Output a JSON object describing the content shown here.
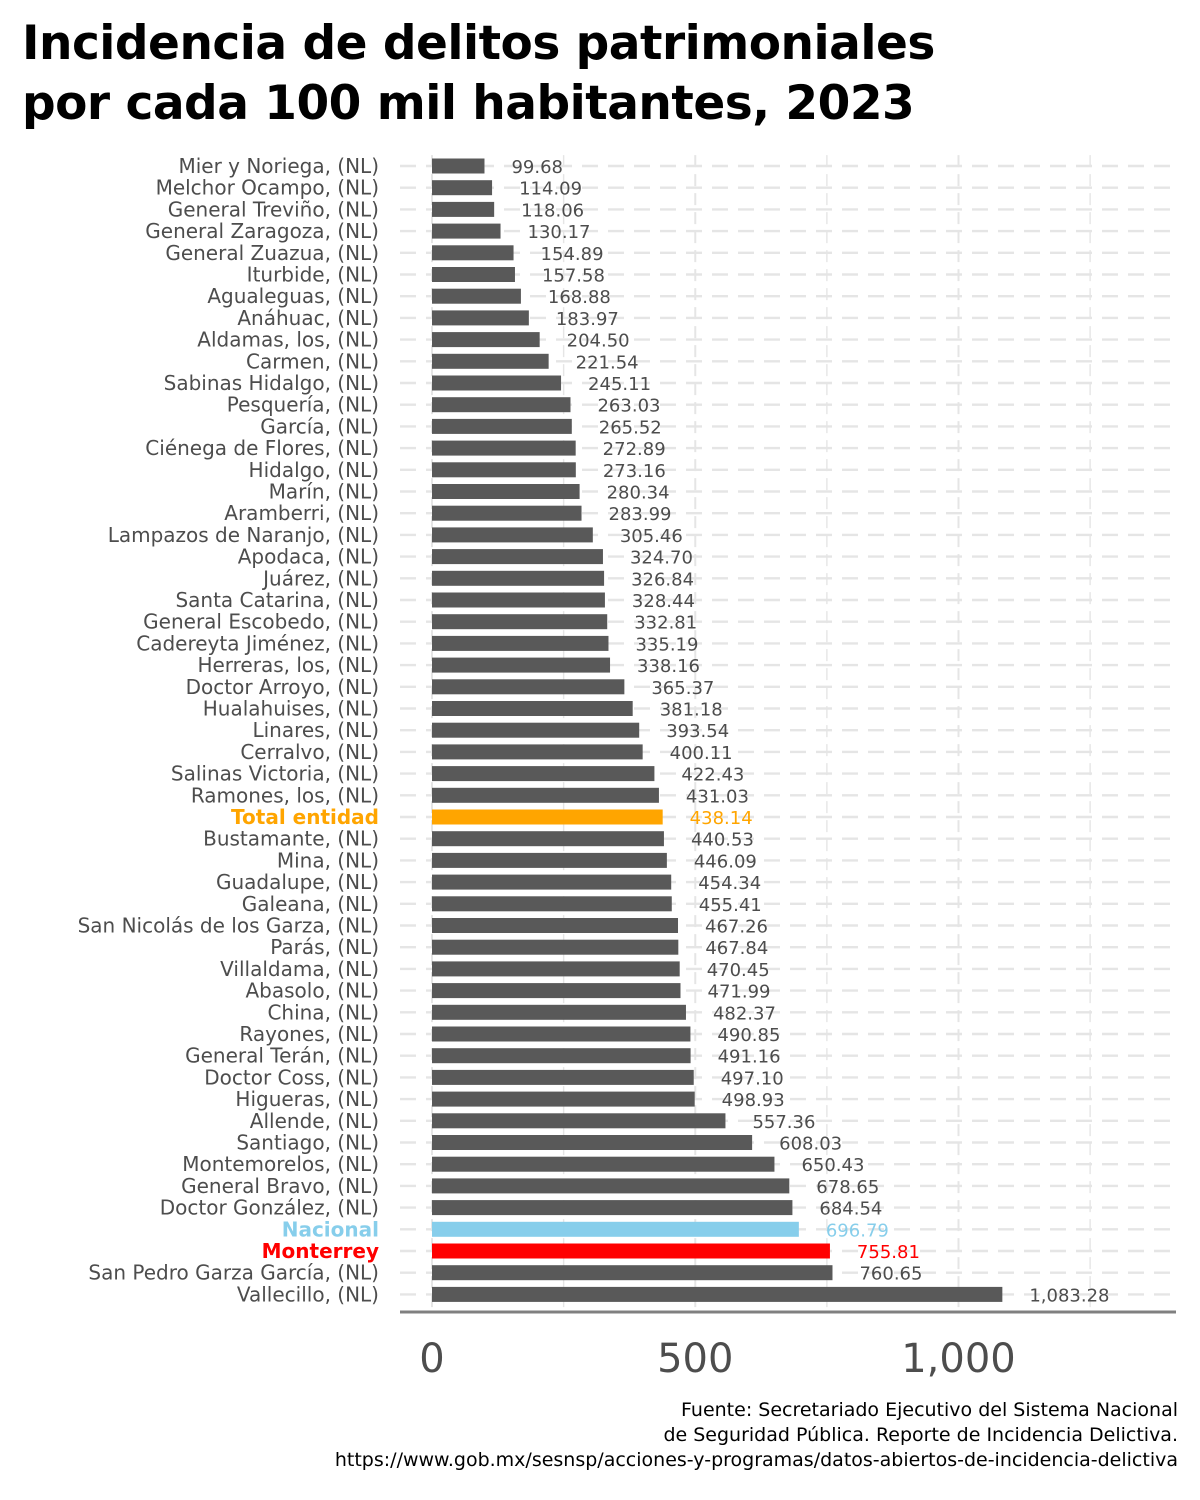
{
  "title": {
    "line1": "Incidencia de delitos patrimoniales",
    "line2": "por cada 100 mil habitantes, 2023"
  },
  "source": {
    "line1": "Fuente: Secretariado Ejecutivo del Sistema Nacional",
    "line2": "de Seguridad Pública. Reporte de Incidencia Delictiva.",
    "line3": "https://www.gob.mx/sesnsp/acciones-y-programas/datos-abiertos-de-incidencia-delictiva"
  },
  "chart_data": {
    "type": "bar",
    "orientation": "horizontal",
    "title": "Incidencia de delitos patrimoniales por cada 100 mil habitantes, 2023",
    "xlabel": "",
    "ylabel": "",
    "xlim": [
      0,
      1400
    ],
    "x_ticks": [
      0,
      500,
      1000
    ],
    "x_tick_labels": [
      "0",
      "500",
      "1,000"
    ],
    "grid": true,
    "colors": {
      "default": "#595959",
      "Total entidad": "#FFA500",
      "Nacional": "#87CEEB",
      "Monterrey": "#FF0000",
      "value_label": "#4d4d4d",
      "grid": "#e5e5e5",
      "axis": "#808080"
    },
    "categories": [
      "Mier y Noriega, (NL)",
      "Melchor Ocampo, (NL)",
      "General Treviño, (NL)",
      "General Zaragoza, (NL)",
      "General Zuazua, (NL)",
      "Iturbide, (NL)",
      "Agualeguas, (NL)",
      "Anáhuac, (NL)",
      "Aldamas, los, (NL)",
      "Carmen, (NL)",
      "Sabinas Hidalgo, (NL)",
      "Pesquería, (NL)",
      "García, (NL)",
      "Ciénega de Flores, (NL)",
      "Hidalgo, (NL)",
      "Marín, (NL)",
      "Aramberri, (NL)",
      "Lampazos de Naranjo, (NL)",
      "Apodaca, (NL)",
      "Juárez, (NL)",
      "Santa Catarina, (NL)",
      "General Escobedo, (NL)",
      "Cadereyta Jiménez, (NL)",
      "Herreras, los, (NL)",
      "Doctor Arroyo, (NL)",
      "Hualahuises, (NL)",
      "Linares, (NL)",
      "Cerralvo, (NL)",
      "Salinas Victoria, (NL)",
      "Ramones, los, (NL)",
      "Total entidad",
      "Bustamante, (NL)",
      "Mina, (NL)",
      "Guadalupe, (NL)",
      "Galeana, (NL)",
      "San Nicolás de los Garza, (NL)",
      "Parás, (NL)",
      "Villaldama, (NL)",
      "Abasolo, (NL)",
      "China, (NL)",
      "Rayones, (NL)",
      "General Terán, (NL)",
      "Doctor Coss, (NL)",
      "Higueras, (NL)",
      "Allende, (NL)",
      "Santiago, (NL)",
      "Montemorelos, (NL)",
      "General Bravo, (NL)",
      "Doctor González, (NL)",
      "Nacional",
      "Monterrey",
      "San Pedro Garza García, (NL)",
      "Vallecillo, (NL)"
    ],
    "values": [
      99.68,
      114.09,
      118.06,
      130.17,
      154.89,
      157.58,
      168.88,
      183.97,
      204.5,
      221.54,
      245.11,
      263.03,
      265.52,
      272.89,
      273.16,
      280.34,
      283.99,
      305.46,
      324.7,
      326.84,
      328.44,
      332.81,
      335.19,
      338.16,
      365.37,
      381.18,
      393.54,
      400.11,
      422.43,
      431.03,
      438.14,
      440.53,
      446.09,
      454.34,
      455.41,
      467.26,
      467.84,
      470.45,
      471.99,
      482.37,
      490.85,
      491.16,
      497.1,
      498.93,
      557.36,
      608.03,
      650.43,
      678.65,
      684.54,
      696.79,
      755.81,
      760.65,
      1083.28
    ],
    "value_labels": [
      "99.68",
      "114.09",
      "118.06",
      "130.17",
      "154.89",
      "157.58",
      "168.88",
      "183.97",
      "204.50",
      "221.54",
      "245.11",
      "263.03",
      "265.52",
      "272.89",
      "273.16",
      "280.34",
      "283.99",
      "305.46",
      "324.70",
      "326.84",
      "328.44",
      "332.81",
      "335.19",
      "338.16",
      "365.37",
      "381.18",
      "393.54",
      "400.11",
      "422.43",
      "431.03",
      "438.14",
      "440.53",
      "446.09",
      "454.34",
      "455.41",
      "467.26",
      "467.84",
      "470.45",
      "471.99",
      "482.37",
      "490.85",
      "491.16",
      "497.10",
      "498.93",
      "557.36",
      "608.03",
      "650.43",
      "678.65",
      "684.54",
      "696.79",
      "755.81",
      "760.65",
      "1,083.28"
    ],
    "highlighted": [
      "Total entidad",
      "Nacional",
      "Monterrey"
    ]
  }
}
